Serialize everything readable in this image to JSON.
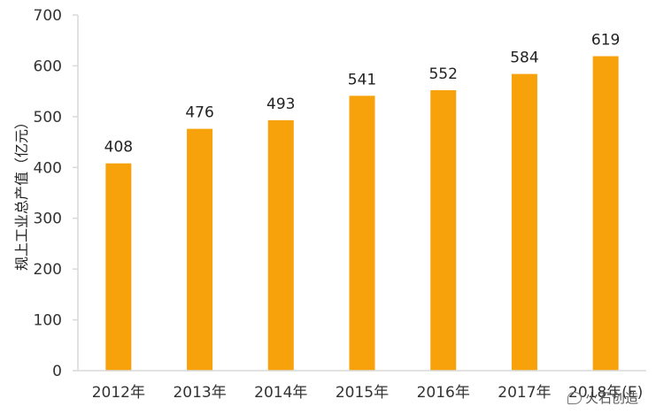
{
  "chart_data": {
    "type": "bar",
    "categories": [
      "2012年",
      "2013年",
      "2014年",
      "2015年",
      "2016年",
      "2017年",
      "2018年(E)"
    ],
    "values": [
      408,
      476,
      493,
      541,
      552,
      584,
      619
    ],
    "data_labels": [
      "408",
      "476",
      "493",
      "541",
      "552",
      "584",
      "619"
    ],
    "ylabel": "规上工业总产值（亿元）",
    "ylim": [
      0,
      700
    ],
    "yticks": [
      0,
      100,
      200,
      300,
      400,
      500,
      600,
      700
    ],
    "grid": false,
    "legend": "none",
    "bar_color": "#F7A10B",
    "axis_color": "#D9D9D9"
  },
  "watermark": {
    "text": "火石创造",
    "icon": "wechat-bubble-icon"
  }
}
